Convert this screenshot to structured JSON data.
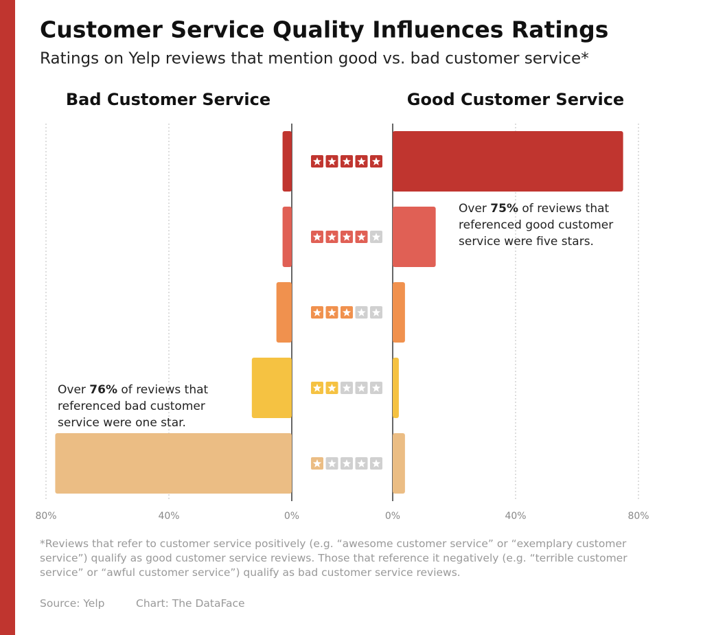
{
  "header": {
    "title": "Customer Service Quality Influences Ratings",
    "subtitle": "Ratings on Yelp reviews that mention good vs. bad customer service*"
  },
  "ratings": [
    5,
    4,
    3,
    2,
    1
  ],
  "chart_data": [
    {
      "type": "bar",
      "orientation": "horizontal",
      "reversed": true,
      "title": "Bad Customer Service",
      "categories": [
        null,
        null,
        null,
        null,
        null
      ],
      "values": [
        3,
        3,
        5,
        13,
        77
      ],
      "colors": [
        "#c0352f",
        "#e06055",
        "#f0914e",
        "#f5c242",
        "#ebbd84"
      ],
      "xlim": [
        0,
        80
      ],
      "xticks": [
        {
          "value": 0,
          "label": "0%"
        },
        {
          "value": 40,
          "label": "40%"
        },
        {
          "value": 80,
          "label": "80%"
        }
      ],
      "grid": true,
      "annotation": {
        "before": "Over ",
        "bold": "76%",
        "after": " of reviews that referenced bad customer service were one star."
      }
    },
    {
      "type": "bar",
      "orientation": "horizontal",
      "reversed": false,
      "title": "Good Customer Service",
      "categories": [
        null,
        null,
        null,
        null,
        null
      ],
      "values": [
        75,
        14,
        4,
        2,
        4
      ],
      "colors": [
        "#c0352f",
        "#e06055",
        "#f0914e",
        "#f5c242",
        "#ebbd84"
      ],
      "xlim": [
        0,
        80
      ],
      "xticks": [
        {
          "value": 0,
          "label": "0%"
        },
        {
          "value": 40,
          "label": "40%"
        },
        {
          "value": 80,
          "label": "80%"
        }
      ],
      "grid": true,
      "annotation": {
        "before": "Over ",
        "bold": "75%",
        "after": " of reviews that referenced good customer service were five stars."
      }
    }
  ],
  "footer": {
    "note": "*Reviews that refer to customer service positively (e.g. “awesome customer service” or “exemplary customer service”) qualify as good customer service reviews. Those that reference it negatively (e.g. “terrible customer service” or “awful customer service”) qualify as bad customer service reviews.",
    "source": "Source: Yelp",
    "credit": "Chart: The DataFace"
  }
}
